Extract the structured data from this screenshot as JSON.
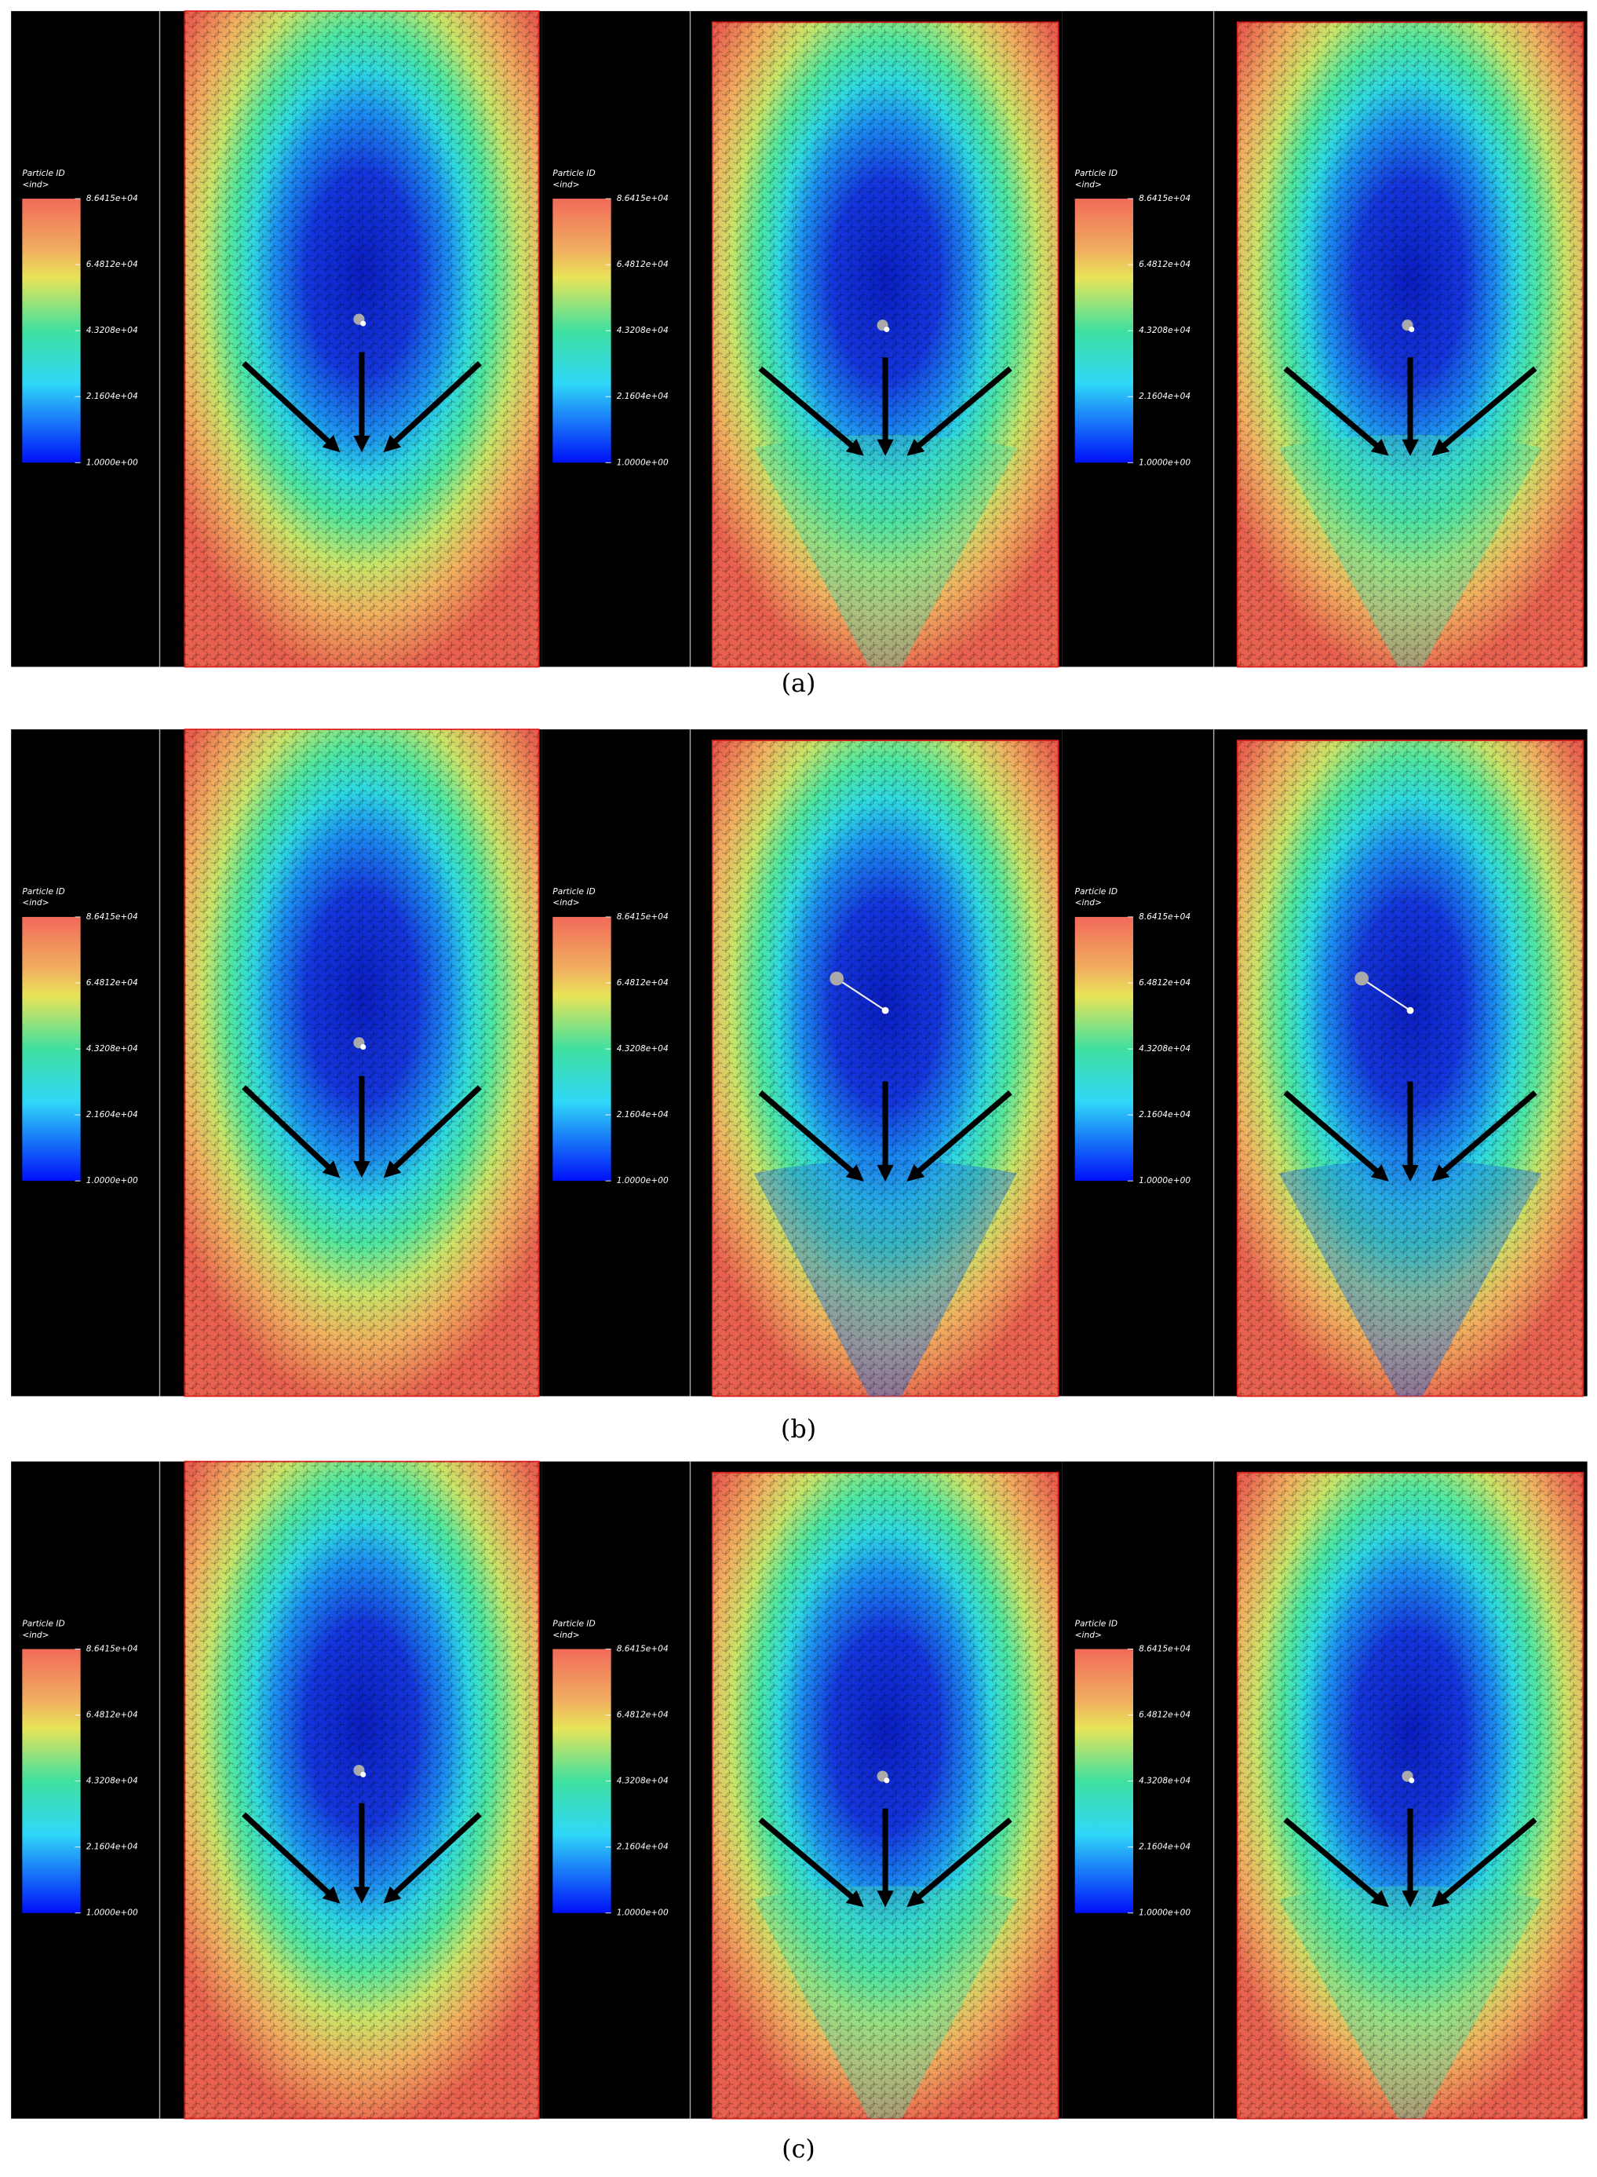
{
  "rows": [
    {
      "label": "(a)",
      "panels": [
        {
          "colorbar": {
            "title": "Particle ID",
            "unit": "<ind>",
            "ticks": [
              "8.6415e+04",
              "6.4812e+04",
              "4.3208e+04",
              "2.1604e+04",
              "1.0000e+00"
            ]
          }
        },
        {
          "colorbar": {
            "title": "Particle ID",
            "unit": "<ind>",
            "ticks": [
              "8.6415e+04",
              "6.4812e+04",
              "4.3208e+04",
              "2.1604e+04",
              "1.0000e+00"
            ]
          }
        },
        {
          "colorbar": {
            "title": "Particle ID",
            "unit": "<ind>",
            "ticks": [
              "8.6415e+04",
              "6.4812e+04",
              "4.3208e+04",
              "2.1604e+04",
              "1.0000e+00"
            ]
          }
        }
      ]
    },
    {
      "label": "(b)",
      "panels": [
        {
          "colorbar": {
            "title": "Particle ID",
            "unit": "<ind>",
            "ticks": [
              "8.6415e+04",
              "6.4812e+04",
              "4.3208e+04",
              "2.1604e+04",
              "1.0000e+00"
            ]
          }
        },
        {
          "colorbar": {
            "title": "Particle ID",
            "unit": "<ind>",
            "ticks": [
              "8.6415e+04",
              "6.4812e+04",
              "4.3208e+04",
              "2.1604e+04",
              "1.0000e+00"
            ]
          }
        },
        {
          "colorbar": {
            "title": "Particle ID",
            "unit": "<ind>",
            "ticks": [
              "8.6415e+04",
              "6.4812e+04",
              "4.3208e+04",
              "2.1604e+04",
              "1.0000e+00"
            ]
          }
        }
      ]
    },
    {
      "label": "(c)",
      "panels": [
        {
          "colorbar": {
            "title": "Particle ID",
            "unit": "<ind>",
            "ticks": [
              "8.6415e+04",
              "6.4812e+04",
              "4.3208e+04",
              "2.1604e+04",
              "1.0000e+00"
            ]
          }
        },
        {
          "colorbar": {
            "title": "Particle ID",
            "unit": "<ind>",
            "ticks": [
              "8.6415e+04",
              "6.4812e+04",
              "4.3208e+04",
              "2.1604e+04",
              "1.0000e+00"
            ]
          }
        },
        {
          "colorbar": {
            "title": "Particle ID",
            "unit": "<ind>",
            "ticks": [
              "8.6415e+04",
              "6.4812e+04",
              "4.3208e+04",
              "2.1604e+04",
              "1.0000e+00"
            ]
          }
        }
      ]
    }
  ]
}
